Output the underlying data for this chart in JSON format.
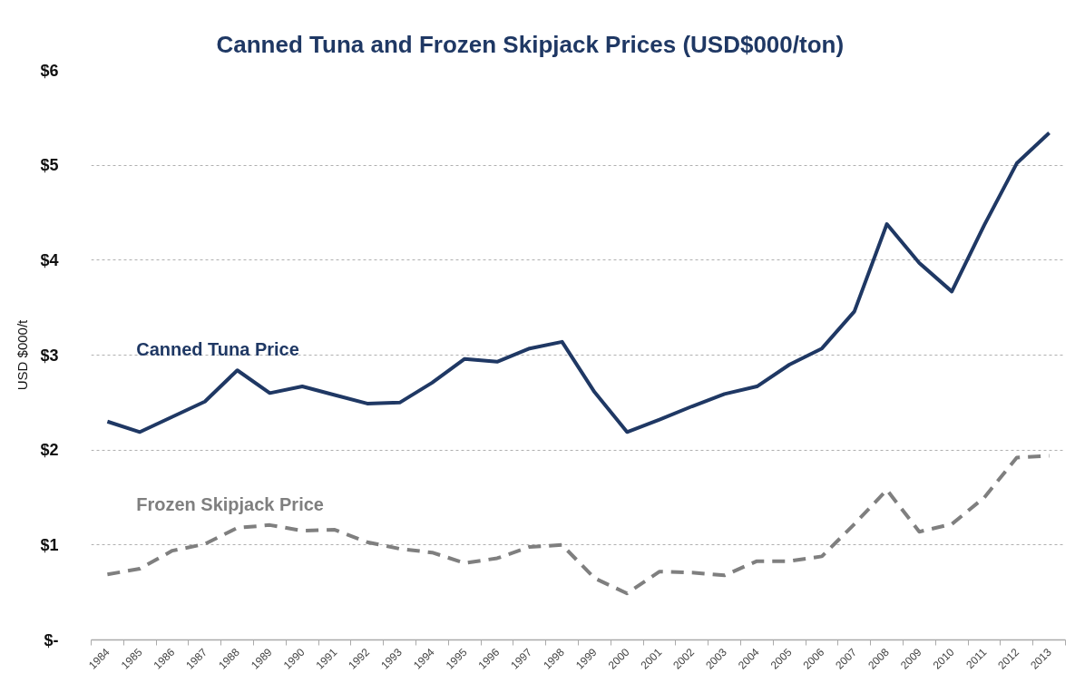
{
  "chart_data": {
    "type": "line",
    "title": "Canned Tuna and Frozen Skipjack Prices (USD$000/ton)",
    "ylabel": "USD $000/t",
    "categories": [
      "1984",
      "1985",
      "1986",
      "1987",
      "1988",
      "1989",
      "1990",
      "1991",
      "1992",
      "1993",
      "1994",
      "1995",
      "1996",
      "1997",
      "1998",
      "1999",
      "2000",
      "2001",
      "2002",
      "2003",
      "2004",
      "2005",
      "2006",
      "2007",
      "2008",
      "2009",
      "2010",
      "2011",
      "2012",
      "2013"
    ],
    "ylim": [
      0,
      6
    ],
    "yticks": [
      {
        "value": 0,
        "label": "$-"
      },
      {
        "value": 1,
        "label": "$1"
      },
      {
        "value": 2,
        "label": "$2"
      },
      {
        "value": 3,
        "label": "$3"
      },
      {
        "value": 4,
        "label": "$4"
      },
      {
        "value": 5,
        "label": "$5"
      },
      {
        "value": 6,
        "label": "$6"
      }
    ],
    "grid": "y",
    "series": [
      {
        "name": "Canned Tuna Price",
        "color": "#1f3864",
        "line_style": "solid",
        "values": [
          2.3,
          2.19,
          2.35,
          2.51,
          2.84,
          2.6,
          2.67,
          2.58,
          2.49,
          2.5,
          2.71,
          2.96,
          2.93,
          3.07,
          3.14,
          2.61,
          2.19,
          2.32,
          2.46,
          2.59,
          2.67,
          2.9,
          3.07,
          3.46,
          4.38,
          3.97,
          3.67,
          4.37,
          5.02,
          5.34
        ]
      },
      {
        "name": "Frozen Skipjack Price",
        "color": "#7f7f7f",
        "line_style": "dashed",
        "values": [
          0.69,
          0.75,
          0.94,
          1.01,
          1.18,
          1.21,
          1.15,
          1.16,
          1.03,
          0.96,
          0.92,
          0.81,
          0.86,
          0.98,
          1.0,
          0.65,
          0.49,
          0.72,
          0.71,
          0.68,
          0.83,
          0.83,
          0.88,
          1.22,
          1.58,
          1.14,
          1.22,
          1.5,
          1.92,
          1.94
        ]
      }
    ]
  }
}
